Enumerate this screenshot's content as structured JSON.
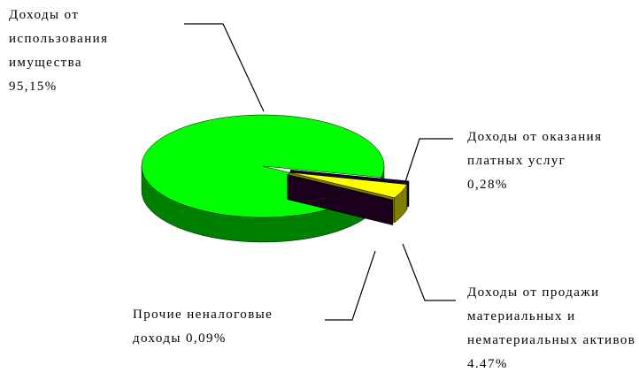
{
  "chart_data": {
    "type": "pie3d",
    "categories": [
      "Доходы от использования имущества",
      "Доходы от оказания платных услуг",
      "Доходы от продажи материальных и нематериальных активов",
      "Прочие неналоговые доходы"
    ],
    "values": [
      95.15,
      0.28,
      4.47,
      0.09
    ],
    "value_labels": [
      "95,15%",
      "0,28%",
      "4.47%",
      "0,09%"
    ],
    "colors": [
      "#00ff00",
      "#1a1a66",
      "#ffff00",
      "#330033"
    ],
    "side_colors": [
      "#008000",
      "#0d0d40",
      "#808000",
      "#1a001a"
    ]
  }
}
